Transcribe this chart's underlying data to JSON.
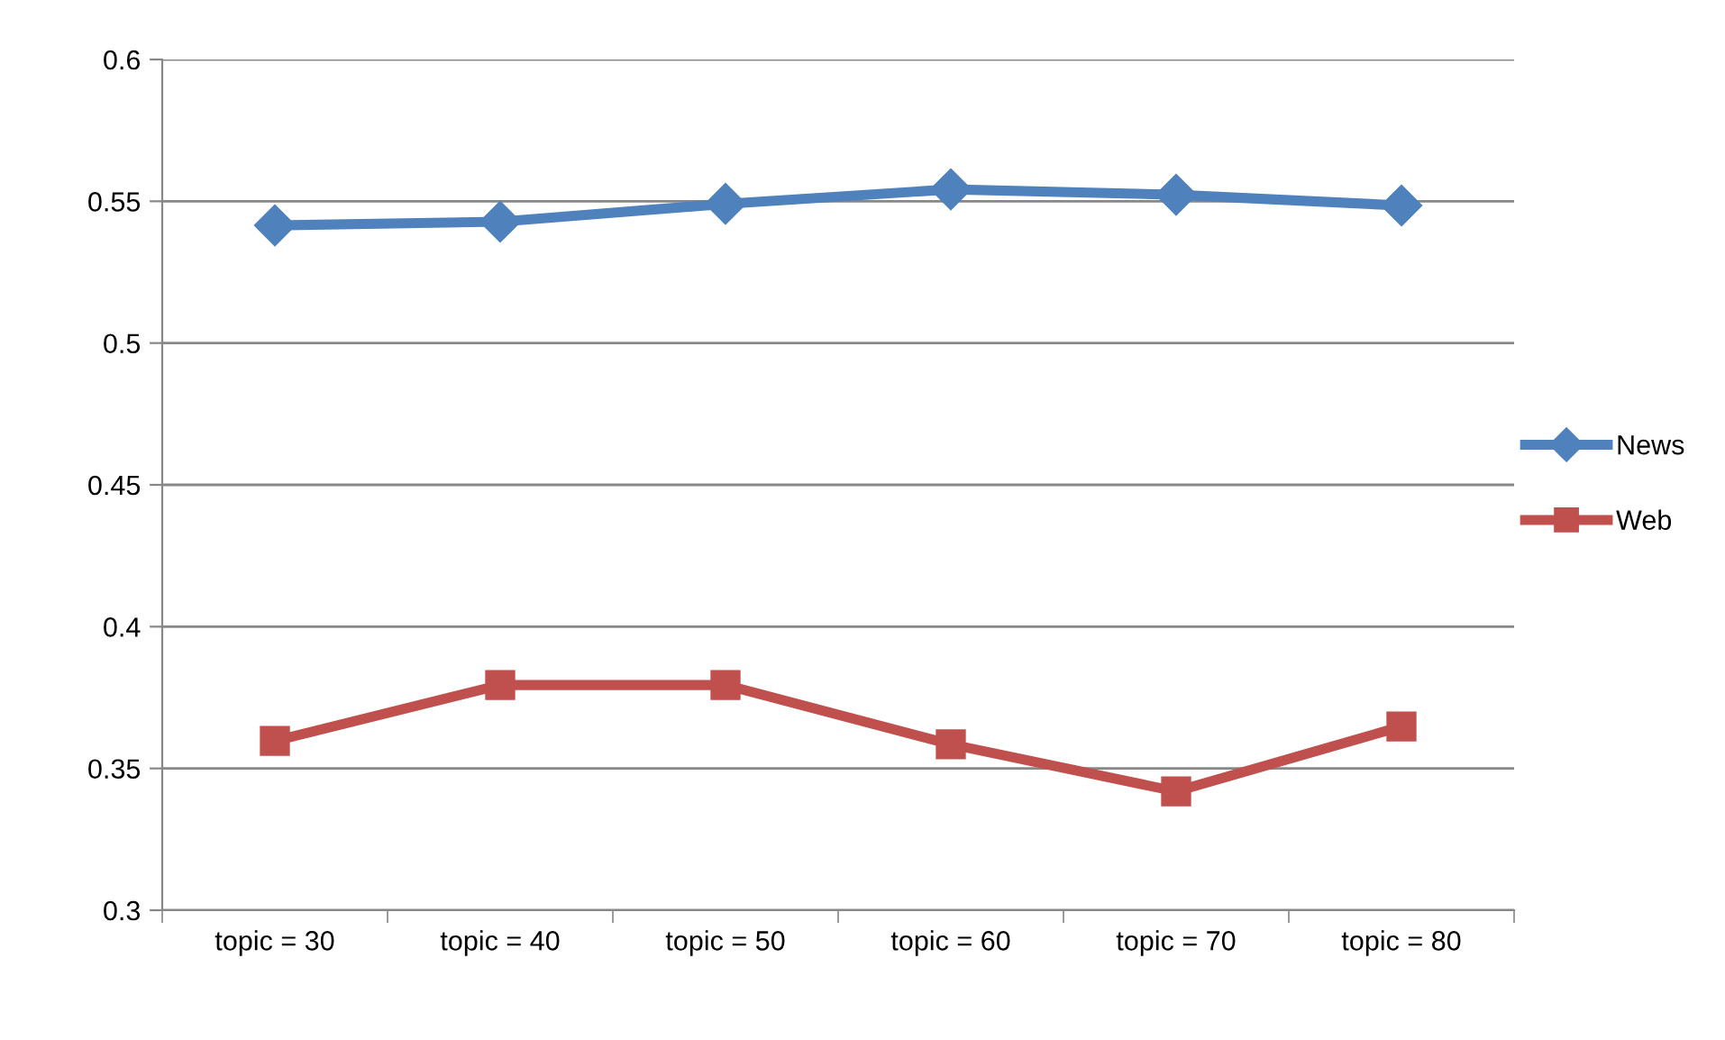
{
  "chart_data": {
    "type": "line",
    "categories": [
      "topic = 30",
      "topic = 40",
      "topic = 50",
      "topic = 60",
      "topic = 70",
      "topic = 80"
    ],
    "series": [
      {
        "name": "News",
        "color": "#4f81bd",
        "marker": "diamond",
        "values": [
          0.5415,
          0.5428,
          0.5491,
          0.5542,
          0.5523,
          0.5485
        ]
      },
      {
        "name": "Web",
        "color": "#c0504d",
        "marker": "square",
        "values": [
          0.3597,
          0.3794,
          0.3794,
          0.3585,
          0.3419,
          0.3648
        ]
      }
    ],
    "ylim": [
      0.3,
      0.6
    ],
    "yticks": [
      {
        "value": 0.3,
        "label": "0.3"
      },
      {
        "value": 0.35,
        "label": "0.35"
      },
      {
        "value": 0.4,
        "label": "0.4"
      },
      {
        "value": 0.45,
        "label": "0.45"
      },
      {
        "value": 0.5,
        "label": "0.5"
      },
      {
        "value": 0.55,
        "label": "0.55"
      },
      {
        "value": 0.6,
        "label": "0.6"
      }
    ],
    "grid": "y",
    "legend": "right",
    "line_style": "solid"
  }
}
